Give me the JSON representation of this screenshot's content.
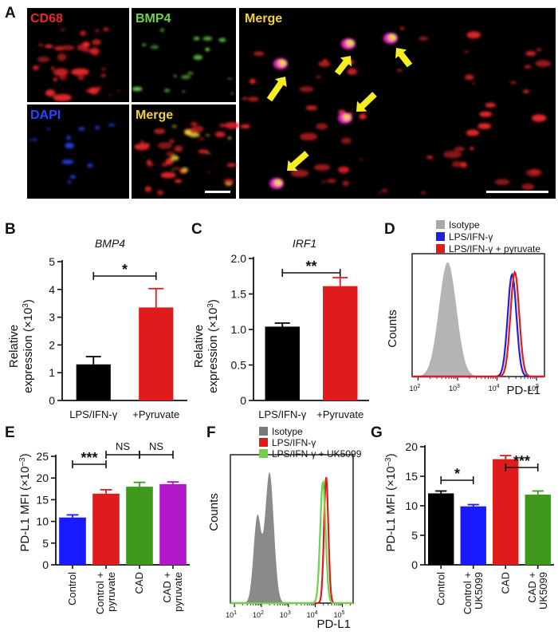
{
  "panels": {
    "A": {
      "letter": "A",
      "labels": {
        "cd68": "CD68",
        "bmp4": "BMP4",
        "dapi": "DAPI",
        "merge_small": "Merge",
        "merge_large": "Merge"
      },
      "colors": {
        "cd68": "#e8262a",
        "bmp4": "#6ed24a",
        "dapi": "#2a44ff",
        "merge": "#f2d23c",
        "arrow": "#f5ee21"
      }
    },
    "B": {
      "letter": "B"
    },
    "C": {
      "letter": "C"
    },
    "D": {
      "letter": "D"
    },
    "E": {
      "letter": "E"
    },
    "F": {
      "letter": "F"
    },
    "G": {
      "letter": "G"
    }
  },
  "chart_data": [
    {
      "id": "B",
      "type": "bar",
      "title": "BMP4",
      "ylabel_line1": "Relative",
      "ylabel_line2": "expression (×10",
      "ylabel_sup": "3",
      "ylabel_end": ")",
      "categories": [
        "LPS/IFN-γ",
        "+Pyruvate"
      ],
      "values": [
        1.3,
        3.35
      ],
      "errors": [
        0.28,
        0.68
      ],
      "colors": [
        "#000000",
        "#e01b1b"
      ],
      "ylim": [
        0,
        5
      ],
      "yticks": [
        "0",
        "1",
        "2",
        "3",
        "4",
        "5"
      ],
      "significance": [
        {
          "from": 0,
          "to": 1,
          "label": "*"
        }
      ]
    },
    {
      "id": "C",
      "type": "bar",
      "title": "IRF1",
      "ylabel_line1": "Relative",
      "ylabel_line2": "expression (×10",
      "ylabel_sup": "3",
      "ylabel_end": ")",
      "categories": [
        "LPS/IFN-γ",
        "+Pyruvate"
      ],
      "values": [
        1.04,
        1.61
      ],
      "errors": [
        0.05,
        0.12
      ],
      "colors": [
        "#000000",
        "#e01b1b"
      ],
      "ylim": [
        0,
        2.0
      ],
      "yticks": [
        "0",
        "0.5",
        "1.0",
        "1.5",
        "2.0"
      ],
      "significance": [
        {
          "from": 0,
          "to": 1,
          "label": "**"
        }
      ]
    },
    {
      "id": "D",
      "type": "area",
      "ylabel": "Counts",
      "xlabel": "PD-L1",
      "xticks": [
        "2",
        "3",
        "4",
        "5"
      ],
      "xscale": "log",
      "legend": [
        {
          "name": "Isotype",
          "color": "#a8a8a8"
        },
        {
          "name": "LPS/IFN-γ",
          "color": "#1f1fe0"
        },
        {
          "name": "LPS/IFN-γ + pyruvate",
          "color": "#e01b1b"
        }
      ],
      "series": [
        {
          "name": "Isotype",
          "fill": true,
          "color": "#b4b4b4",
          "peaks": [
            [
              2.75,
              0.93,
              0.22
            ]
          ]
        },
        {
          "name": "LPS/IFN-γ",
          "fill": false,
          "color": "#1f1fe0",
          "peaks": [
            [
              4.38,
              0.83,
              0.11
            ]
          ]
        },
        {
          "name": "LPS/IFN-γ + pyruvate",
          "fill": false,
          "color": "#e01b1b",
          "peaks": [
            [
              4.45,
              0.85,
              0.11
            ]
          ]
        }
      ]
    },
    {
      "id": "E",
      "type": "bar",
      "ylabel": "PD-L1 MFI (×10",
      "ylabel_sup": "–3",
      "ylabel_end": ")",
      "categories": [
        "Control",
        "Control + pyruvate",
        "CAD",
        "CAD + pyruvate"
      ],
      "category_lines": [
        [
          "Control"
        ],
        [
          "Control +",
          "pyruvate"
        ],
        [
          "CAD"
        ],
        [
          "CAD +",
          "pyruvate"
        ]
      ],
      "values": [
        10.9,
        16.4,
        18.0,
        18.6
      ],
      "errors": [
        0.6,
        0.9,
        1.0,
        0.5
      ],
      "colors": [
        "#1a1aff",
        "#e01b1b",
        "#3d9a1d",
        "#b018c8"
      ],
      "ylim": [
        0,
        25
      ],
      "yticks": [
        "0",
        "5",
        "10",
        "15",
        "20",
        "25"
      ],
      "significance": [
        {
          "from": 0,
          "to": 1,
          "label": "***"
        },
        {
          "from": 1,
          "to": 2,
          "label": "NS"
        },
        {
          "from": 2,
          "to": 3,
          "label": "NS"
        }
      ]
    },
    {
      "id": "F",
      "type": "area",
      "ylabel": "Counts",
      "xlabel": "PD-L1",
      "xticks": [
        "1",
        "2",
        "3",
        "4",
        "5"
      ],
      "xscale": "log",
      "legend": [
        {
          "name": "Isotype",
          "color": "#7a7a7a"
        },
        {
          "name": "LPS/IFN-γ",
          "color": "#e01b1b"
        },
        {
          "name": "LPS/IFN-γ + UK5099",
          "color": "#6ed24a"
        }
      ],
      "series": [
        {
          "name": "Isotype",
          "fill": true,
          "color": "#8a8a8a",
          "peaks": [
            [
              1.85,
              0.58,
              0.14
            ],
            [
              2.3,
              0.88,
              0.16
            ]
          ]
        },
        {
          "name": "LPS/IFN-γ",
          "fill": false,
          "color": "#e01b1b",
          "peaks": [
            [
              4.4,
              0.85,
              0.08
            ]
          ]
        },
        {
          "name": "LPS/IFN-γ + UK5099",
          "fill": false,
          "color": "#6ed24a",
          "peaks": [
            [
              4.28,
              0.82,
              0.1
            ]
          ]
        }
      ]
    },
    {
      "id": "G",
      "type": "bar",
      "ylabel": "PD-L1 MFI (×10",
      "ylabel_sup": "–3",
      "ylabel_end": ")",
      "categories": [
        "Control",
        "Control + UK5099",
        "CAD",
        "CAD + UK5099"
      ],
      "category_lines": [
        [
          "Control"
        ],
        [
          "Control +",
          "UK5099"
        ],
        [
          "CAD"
        ],
        [
          "CAD +",
          "UK5099"
        ]
      ],
      "values": [
        12.1,
        9.9,
        17.9,
        11.9
      ],
      "errors": [
        0.4,
        0.3,
        0.6,
        0.6
      ],
      "colors": [
        "#000000",
        "#1a1aff",
        "#e01b1b",
        "#3d9a1d"
      ],
      "ylim": [
        0,
        20
      ],
      "yticks": [
        "0",
        "5",
        "10",
        "15",
        "20"
      ],
      "significance": [
        {
          "from": 0,
          "to": 1,
          "label": "*"
        },
        {
          "from": 2,
          "to": 3,
          "label": "***"
        }
      ]
    }
  ]
}
